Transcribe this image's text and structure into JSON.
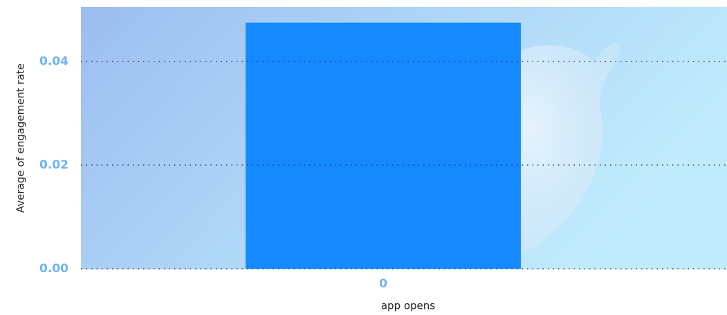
{
  "chart_data": {
    "type": "bar",
    "categories": [
      "0"
    ],
    "values": [
      0.0475
    ],
    "color": "#1589ff",
    "xlabel": "app opens",
    "ylabel": "Average of engagement rate",
    "ylim": [
      0,
      0.05
    ],
    "yticks": [
      {
        "value": 0,
        "label": "0.00"
      },
      0.02,
      0.04
    ],
    "grid": true
  }
}
